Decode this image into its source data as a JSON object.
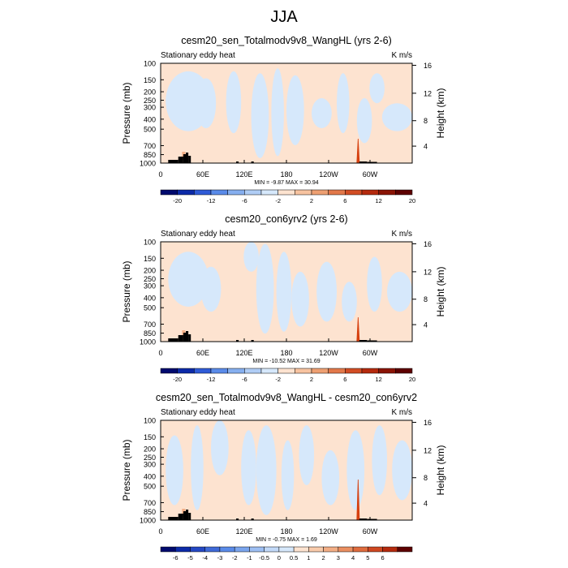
{
  "page": {
    "title": "JJA"
  },
  "chart_data": [
    {
      "type": "heatmap",
      "title": "cesm20_sen_Totalmodv9v8_WangHL (yrs 2-6)",
      "subtitle_left": "Stationary eddy heat",
      "units": "K m/s",
      "ylabel": "Pressure (mb)",
      "ylabel_right": "Height (km)",
      "x_ticks": [
        "0",
        "60E",
        "120E",
        "180",
        "120W",
        "60W"
      ],
      "y_ticks": [
        "100",
        "150",
        "200",
        "250",
        "300",
        "400",
        "500",
        "700",
        "850",
        "1000"
      ],
      "y_ticks_right": [
        "16",
        "12",
        "8",
        "4"
      ],
      "stats": "MIN = -9.87  MAX = 30.94",
      "min": -9.87,
      "max": 30.94,
      "colorbar_levels": [
        "-20",
        "-12",
        "-6",
        "-2",
        "2",
        "6",
        "12",
        "20"
      ]
    },
    {
      "type": "heatmap",
      "title": "cesm20_con6yrv2 (yrs 2-6)",
      "subtitle_left": "Stationary eddy heat",
      "units": "K m/s",
      "ylabel": "Pressure (mb)",
      "ylabel_right": "Height (km)",
      "x_ticks": [
        "0",
        "60E",
        "120E",
        "180",
        "120W",
        "60W"
      ],
      "y_ticks": [
        "100",
        "150",
        "200",
        "250",
        "300",
        "400",
        "500",
        "700",
        "850",
        "1000"
      ],
      "y_ticks_right": [
        "16",
        "12",
        "8",
        "4"
      ],
      "stats": "MIN = -10.52  MAX = 31.69",
      "min": -10.52,
      "max": 31.69,
      "colorbar_levels": [
        "-20",
        "-12",
        "-6",
        "-2",
        "2",
        "6",
        "12",
        "20"
      ]
    },
    {
      "type": "heatmap",
      "title": "cesm20_sen_Totalmodv9v8_WangHL - cesm20_con6yrv2",
      "subtitle_left": "Stationary eddy heat",
      "units": "K m/s",
      "ylabel": "Pressure (mb)",
      "ylabel_right": "Height (km)",
      "x_ticks": [
        "0",
        "60E",
        "120E",
        "180",
        "120W",
        "60W"
      ],
      "y_ticks": [
        "100",
        "150",
        "200",
        "250",
        "300",
        "400",
        "500",
        "700",
        "850",
        "1000"
      ],
      "y_ticks_right": [
        "16",
        "12",
        "8",
        "4"
      ],
      "stats": "MIN = -0.75  MAX = 1.69",
      "min": -0.75,
      "max": 1.69,
      "colorbar_levels": [
        "-6",
        "-5",
        "-4",
        "-3",
        "-2",
        "-1",
        "-0.5",
        "0",
        "0.5",
        "1",
        "2",
        "3",
        "4",
        "5",
        "6"
      ]
    }
  ],
  "colors": {
    "background_positive": "#fde3d0",
    "background_negative": "#d6e8fb",
    "peak": "#d6400f",
    "terrain": "#000000",
    "colorbar_main": [
      "#000a6e",
      "#0c2aa8",
      "#2f5bd7",
      "#5a8be9",
      "#86afef",
      "#b0cdf5",
      "#d6e8fb",
      "#fde3d0",
      "#f7c3a0",
      "#eea072",
      "#e2784a",
      "#d24d24",
      "#b52a0e",
      "#8a1405",
      "#5e0000"
    ],
    "colorbar_diff": [
      "#000a6e",
      "#0c2aa8",
      "#2448c4",
      "#3f6ad8",
      "#5a8be9",
      "#7aa5ee",
      "#9dbff3",
      "#c2d9f8",
      "#d6e8fb",
      "#fde3d0",
      "#f9cbab",
      "#f3ae85",
      "#eb8f61",
      "#df6c3e",
      "#cf4821",
      "#b52a0e",
      "#5e0000"
    ]
  }
}
